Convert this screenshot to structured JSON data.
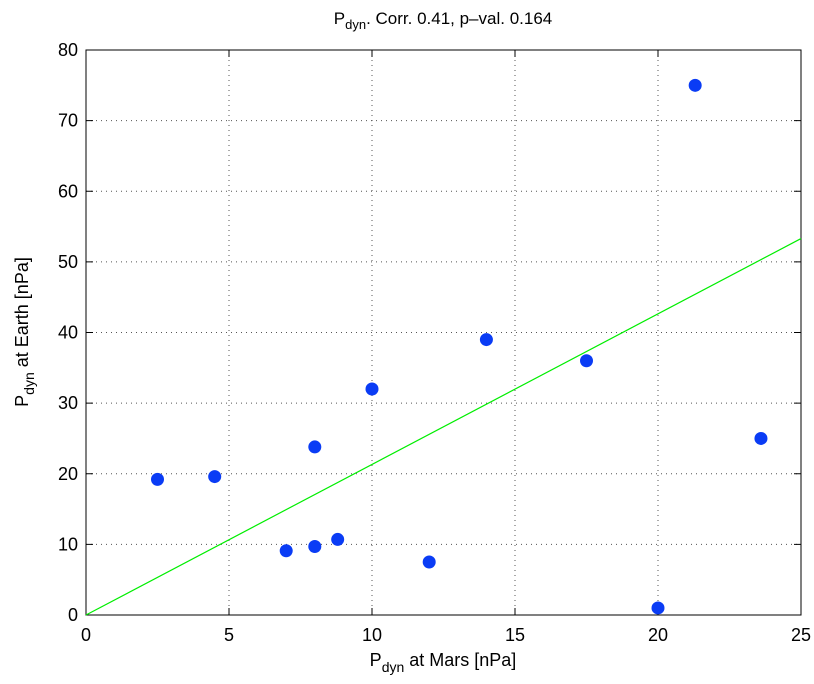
{
  "chart_data": {
    "type": "scatter",
    "title": [
      "P",
      "dyn",
      ". Corr. 0.41, p–val. 0.164"
    ],
    "x_label": [
      "P",
      "dyn",
      " at Mars [nPa]"
    ],
    "y_label": [
      "P",
      "dyn",
      " at Earth [nPa]"
    ],
    "series": [
      {
        "name": "Pdyn",
        "color": "#0a3cf5",
        "x": [
          2.5,
          4.5,
          7,
          8,
          8,
          8.8,
          10,
          12,
          14,
          17.5,
          20,
          21.3,
          23.6
        ],
        "values": [
          19.2,
          19.6,
          9.1,
          9.7,
          23.8,
          10.7,
          32,
          7.5,
          39,
          36,
          1,
          75,
          25
        ]
      }
    ],
    "fit": {
      "color": "#00ee00",
      "x": [
        0,
        25
      ],
      "values": [
        0,
        53.3
      ]
    },
    "xlim": [
      0,
      25
    ],
    "xticks": [
      0,
      5,
      10,
      15,
      20,
      25
    ],
    "ylim": [
      0,
      80
    ],
    "yticks": [
      0,
      10,
      20,
      30,
      40,
      50,
      60,
      70,
      80
    ],
    "grid": true
  }
}
